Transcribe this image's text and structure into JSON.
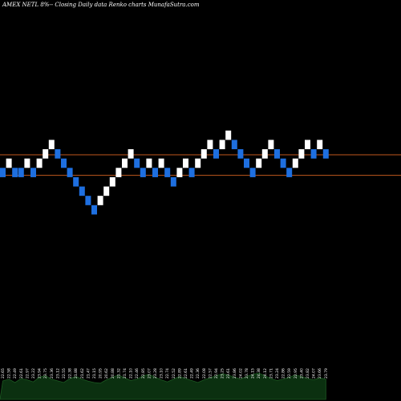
{
  "chart_data": {
    "type": "renko",
    "title": "AMEX  NETL  8%-- Closing Daily data  Renko  charts MunafaSutra.com",
    "colors": {
      "up_brick": "#ffffff",
      "down_brick": "#1e6fe0",
      "reference_line": "#c0581e",
      "volume_fill": "#0b3010",
      "volume_stroke": "#1c5a22"
    },
    "reference_lines": [
      23.2,
      22.1
    ],
    "ylim": [
      10.0,
      31.5
    ],
    "bricks": [
      {
        "dir": "down",
        "close": 22.5
      },
      {
        "dir": "up",
        "close": 23.0
      },
      {
        "dir": "down",
        "close": 22.5
      },
      {
        "dir": "down",
        "close": 22.5
      },
      {
        "dir": "up",
        "close": 23.0
      },
      {
        "dir": "down",
        "close": 22.5
      },
      {
        "dir": "up",
        "close": 23.0
      },
      {
        "dir": "up",
        "close": 23.5
      },
      {
        "dir": "up",
        "close": 24.0
      },
      {
        "dir": "down",
        "close": 23.5
      },
      {
        "dir": "down",
        "close": 23.0
      },
      {
        "dir": "down",
        "close": 22.5
      },
      {
        "dir": "down",
        "close": 22.0
      },
      {
        "dir": "down",
        "close": 21.5
      },
      {
        "dir": "down",
        "close": 21.0
      },
      {
        "dir": "down",
        "close": 20.5
      },
      {
        "dir": "up",
        "close": 21.0
      },
      {
        "dir": "up",
        "close": 21.5
      },
      {
        "dir": "up",
        "close": 22.0
      },
      {
        "dir": "up",
        "close": 22.5
      },
      {
        "dir": "up",
        "close": 23.0
      },
      {
        "dir": "up",
        "close": 23.5
      },
      {
        "dir": "down",
        "close": 23.0
      },
      {
        "dir": "down",
        "close": 22.5
      },
      {
        "dir": "up",
        "close": 23.0
      },
      {
        "dir": "down",
        "close": 22.5
      },
      {
        "dir": "up",
        "close": 23.0
      },
      {
        "dir": "down",
        "close": 22.5
      },
      {
        "dir": "down",
        "close": 22.0
      },
      {
        "dir": "up",
        "close": 22.5
      },
      {
        "dir": "up",
        "close": 23.0
      },
      {
        "dir": "down",
        "close": 22.5
      },
      {
        "dir": "up",
        "close": 23.0
      },
      {
        "dir": "up",
        "close": 23.5
      },
      {
        "dir": "up",
        "close": 24.0
      },
      {
        "dir": "down",
        "close": 23.5
      },
      {
        "dir": "up",
        "close": 24.0
      },
      {
        "dir": "up",
        "close": 24.5
      },
      {
        "dir": "down",
        "close": 24.0
      },
      {
        "dir": "down",
        "close": 23.5
      },
      {
        "dir": "down",
        "close": 23.0
      },
      {
        "dir": "down",
        "close": 22.5
      },
      {
        "dir": "up",
        "close": 23.0
      },
      {
        "dir": "up",
        "close": 23.5
      },
      {
        "dir": "up",
        "close": 24.0
      },
      {
        "dir": "down",
        "close": 23.5
      },
      {
        "dir": "down",
        "close": 23.0
      },
      {
        "dir": "down",
        "close": 22.5
      },
      {
        "dir": "up",
        "close": 23.0
      },
      {
        "dir": "up",
        "close": 23.5
      },
      {
        "dir": "up",
        "close": 24.0
      },
      {
        "dir": "down",
        "close": 23.5
      },
      {
        "dir": "up",
        "close": 24.0
      },
      {
        "dir": "down",
        "close": 23.5
      }
    ],
    "tick_labels": [
      "22.65",
      "22.58",
      "22.49",
      "22.61",
      "22.97",
      "23.22",
      "23.94",
      "23.75",
      "23.36",
      "23.12",
      "22.55",
      "22.38",
      "21.88",
      "21.62",
      "21.47",
      "21.15",
      "20.95",
      "20.62",
      "20.88",
      "21.32",
      "21.74",
      "22.10",
      "22.46",
      "22.85",
      "23.07",
      "23.28",
      "23.10",
      "22.74",
      "22.52",
      "22.89",
      "22.61",
      "22.49",
      "22.36",
      "22.08",
      "22.57",
      "22.94",
      "23.25",
      "23.61",
      "23.86",
      "24.02",
      "23.78",
      "24.15",
      "24.38",
      "24.12",
      "23.71",
      "23.24",
      "22.86",
      "22.59",
      "22.95",
      "23.40",
      "23.82",
      "24.07",
      "23.66",
      "23.79"
    ],
    "volume": [
      0.55,
      0.6,
      0.5,
      0.62,
      0.58,
      0.52,
      0.66,
      0.7,
      0.6,
      0.55,
      0.5,
      0.62,
      0.68,
      0.6,
      0.54,
      0.5,
      0.48,
      0.58,
      0.66,
      0.72,
      0.64,
      0.56,
      0.6,
      0.7,
      0.74,
      0.66,
      0.58,
      0.52,
      0.6,
      0.68,
      0.62,
      0.56,
      0.5,
      0.58,
      0.64,
      0.7,
      0.76,
      0.72,
      0.66,
      0.6,
      0.68,
      0.74,
      0.78,
      0.7,
      0.62,
      0.56,
      0.6,
      0.66,
      0.72,
      0.68,
      0.62,
      0.58,
      0.64,
      0.6
    ]
  }
}
